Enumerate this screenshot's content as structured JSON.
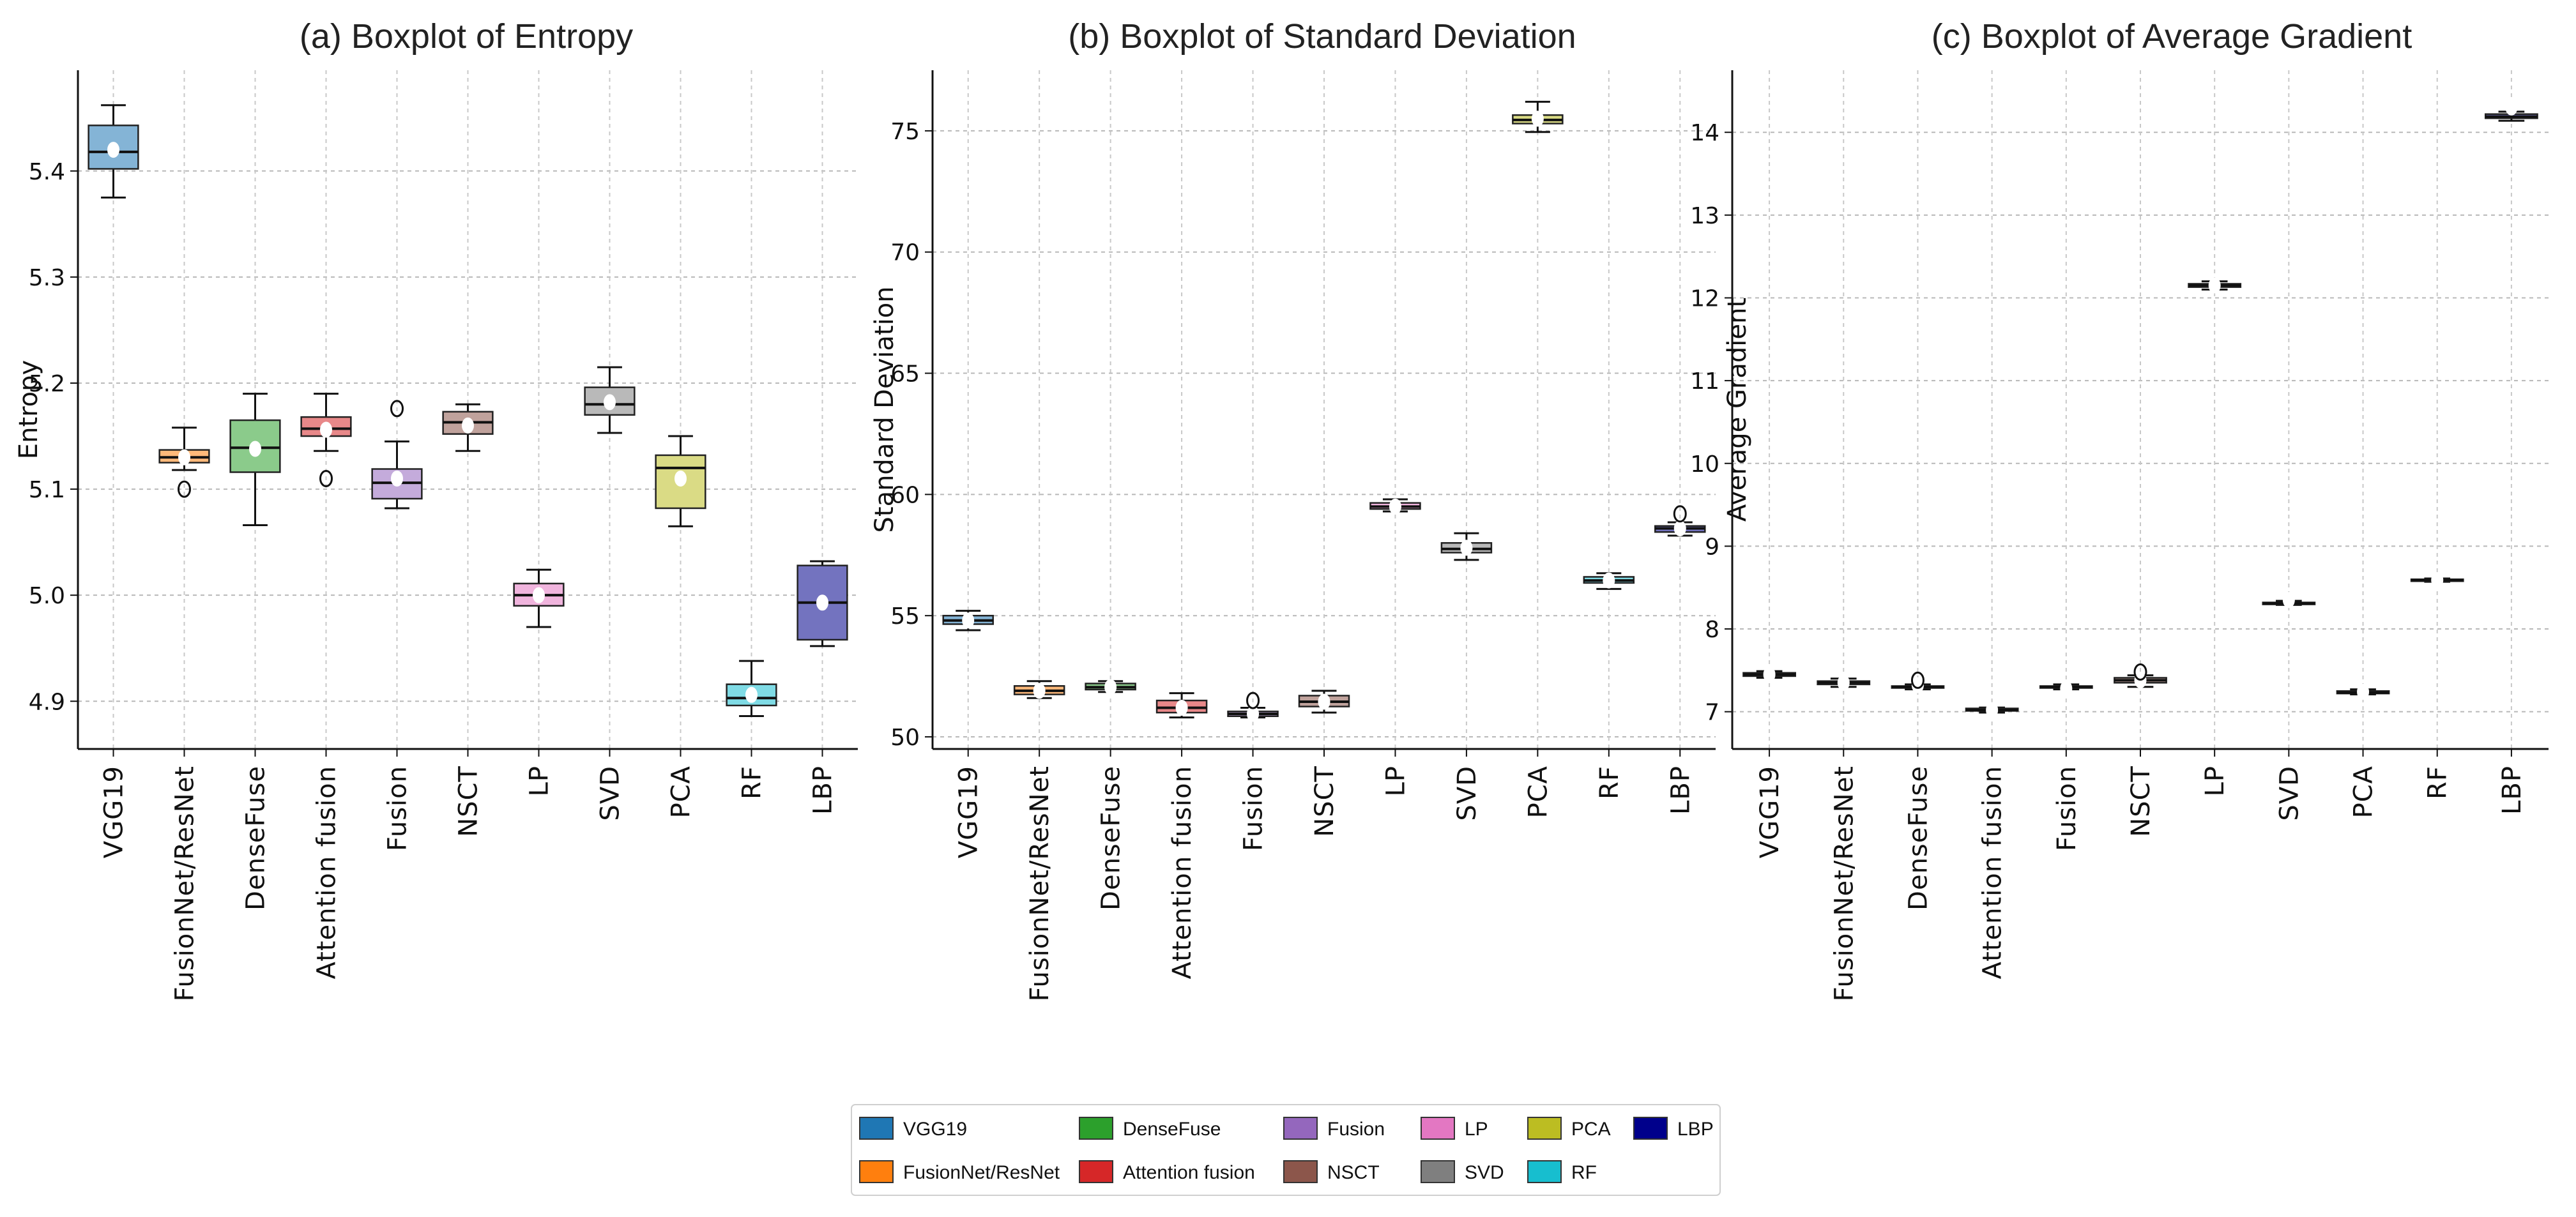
{
  "legend": {
    "items": [
      {
        "label": "VGG19",
        "color": "#1f77b4"
      },
      {
        "label": "FusionNet/ResNet",
        "color": "#ff7f0e"
      },
      {
        "label": "DenseFuse",
        "color": "#2ca02c"
      },
      {
        "label": "Attention fusion",
        "color": "#d62728"
      },
      {
        "label": "Fusion",
        "color": "#9467bd"
      },
      {
        "label": "NSCT",
        "color": "#8c564b"
      },
      {
        "label": "LP",
        "color": "#e377c2"
      },
      {
        "label": "SVD",
        "color": "#7f7f7f"
      },
      {
        "label": "PCA",
        "color": "#bcbd22"
      },
      {
        "label": "RF",
        "color": "#17becf"
      },
      {
        "label": "LBP",
        "color": "#00008b"
      }
    ]
  },
  "chart_data": [
    {
      "type": "boxplot",
      "title": "(a) Boxplot of Entropy",
      "xlabel": "",
      "ylabel": "Entropy",
      "ylim": [
        4.855,
        5.495
      ],
      "yticks": [
        4.9,
        5.0,
        5.1,
        5.2,
        5.3,
        5.4
      ],
      "ytick_labels": [
        "4.9",
        "5.0",
        "5.1",
        "5.2",
        "5.3",
        "5.4"
      ],
      "grid": true,
      "categories": [
        "VGG19",
        "FusionNet/ResNet",
        "DenseFuse",
        "Attention fusion",
        "Fusion",
        "NSCT",
        "LP",
        "SVD",
        "PCA",
        "RF",
        "LBP"
      ],
      "boxes": [
        {
          "whislo": 5.375,
          "q1": 5.402,
          "med": 5.418,
          "q3": 5.443,
          "whishi": 5.462,
          "mean": 5.42,
          "fliers": []
        },
        {
          "whislo": 5.118,
          "q1": 5.125,
          "med": 5.13,
          "q3": 5.137,
          "whishi": 5.158,
          "mean": 5.13,
          "fliers": [
            5.1
          ]
        },
        {
          "whislo": 5.066,
          "q1": 5.116,
          "med": 5.139,
          "q3": 5.165,
          "whishi": 5.19,
          "mean": 5.138,
          "fliers": []
        },
        {
          "whislo": 5.136,
          "q1": 5.15,
          "med": 5.157,
          "q3": 5.168,
          "whishi": 5.19,
          "mean": 5.156,
          "fliers": [
            5.11
          ]
        },
        {
          "whislo": 5.082,
          "q1": 5.091,
          "med": 5.106,
          "q3": 5.119,
          "whishi": 5.145,
          "mean": 5.11,
          "fliers": [
            5.176
          ]
        },
        {
          "whislo": 5.136,
          "q1": 5.152,
          "med": 5.163,
          "q3": 5.173,
          "whishi": 5.18,
          "mean": 5.16,
          "fliers": []
        },
        {
          "whislo": 4.97,
          "q1": 4.99,
          "med": 5.0,
          "q3": 5.011,
          "whishi": 5.024,
          "mean": 5.0,
          "fliers": []
        },
        {
          "whislo": 5.153,
          "q1": 5.17,
          "med": 5.18,
          "q3": 5.196,
          "whishi": 5.215,
          "mean": 5.182,
          "fliers": []
        },
        {
          "whislo": 5.065,
          "q1": 5.082,
          "med": 5.12,
          "q3": 5.132,
          "whishi": 5.15,
          "mean": 5.11,
          "fliers": []
        },
        {
          "whislo": 4.886,
          "q1": 4.896,
          "med": 4.903,
          "q3": 4.916,
          "whishi": 4.938,
          "mean": 4.906,
          "fliers": []
        },
        {
          "whislo": 4.952,
          "q1": 4.958,
          "med": 4.993,
          "q3": 5.028,
          "whishi": 5.032,
          "mean": 4.993,
          "fliers": []
        }
      ]
    },
    {
      "type": "boxplot",
      "title": "(b) Boxplot of Standard Deviation",
      "xlabel": "",
      "ylabel": "Standard Deviation",
      "ylim": [
        49.5,
        77.5
      ],
      "yticks": [
        50,
        55,
        60,
        65,
        70,
        75
      ],
      "ytick_labels": [
        "50",
        "55",
        "60",
        "65",
        "70",
        "75"
      ],
      "grid": true,
      "categories": [
        "VGG19",
        "FusionNet/ResNet",
        "DenseFuse",
        "Attention fusion",
        "Fusion",
        "NSCT",
        "LP",
        "SVD",
        "PCA",
        "RF",
        "LBP"
      ],
      "boxes": [
        {
          "whislo": 54.4,
          "q1": 54.65,
          "med": 54.8,
          "q3": 55.0,
          "whishi": 55.2,
          "mean": 54.8,
          "fliers": []
        },
        {
          "whislo": 51.6,
          "q1": 51.75,
          "med": 51.9,
          "q3": 52.1,
          "whishi": 52.3,
          "mean": 51.9,
          "fliers": []
        },
        {
          "whislo": 51.85,
          "q1": 51.95,
          "med": 52.05,
          "q3": 52.2,
          "whishi": 52.3,
          "mean": 52.05,
          "fliers": []
        },
        {
          "whislo": 50.8,
          "q1": 51.0,
          "med": 51.2,
          "q3": 51.5,
          "whishi": 51.8,
          "mean": 51.2,
          "fliers": []
        },
        {
          "whislo": 50.8,
          "q1": 50.85,
          "med": 50.95,
          "q3": 51.05,
          "whishi": 51.2,
          "mean": 50.95,
          "fliers": [
            51.5
          ]
        },
        {
          "whislo": 51.0,
          "q1": 51.25,
          "med": 51.45,
          "q3": 51.7,
          "whishi": 51.9,
          "mean": 51.45,
          "fliers": []
        },
        {
          "whislo": 59.3,
          "q1": 59.4,
          "med": 59.5,
          "q3": 59.65,
          "whishi": 59.8,
          "mean": 59.5,
          "fliers": []
        },
        {
          "whislo": 57.3,
          "q1": 57.6,
          "med": 57.75,
          "q3": 58.0,
          "whishi": 58.4,
          "mean": 57.8,
          "fliers": []
        },
        {
          "whislo": 74.95,
          "q1": 75.3,
          "med": 75.45,
          "q3": 75.65,
          "whishi": 76.2,
          "mean": 75.5,
          "fliers": []
        },
        {
          "whislo": 56.1,
          "q1": 56.35,
          "med": 56.45,
          "q3": 56.6,
          "whishi": 56.75,
          "mean": 56.45,
          "fliers": []
        },
        {
          "whislo": 58.3,
          "q1": 58.45,
          "med": 58.6,
          "q3": 58.7,
          "whishi": 58.85,
          "mean": 58.6,
          "fliers": [
            59.2
          ]
        }
      ]
    },
    {
      "type": "boxplot",
      "title": "(c) Boxplot of Average Gradient",
      "xlabel": "",
      "ylabel": "Average Gradient",
      "ylim": [
        6.55,
        14.75
      ],
      "yticks": [
        7,
        8,
        9,
        10,
        11,
        12,
        13,
        14
      ],
      "ytick_labels": [
        "7",
        "8",
        "9",
        "10",
        "11",
        "12",
        "13",
        "14"
      ],
      "grid": true,
      "categories": [
        "VGG19",
        "FusionNet/ResNet",
        "DenseFuse",
        "Attention fusion",
        "Fusion",
        "NSCT",
        "LP",
        "SVD",
        "PCA",
        "RF",
        "LBP"
      ],
      "boxes": [
        {
          "whislo": 7.41,
          "q1": 7.43,
          "med": 7.45,
          "q3": 7.47,
          "whishi": 7.49,
          "mean": 7.45,
          "fliers": []
        },
        {
          "whislo": 7.3,
          "q1": 7.33,
          "med": 7.35,
          "q3": 7.37,
          "whishi": 7.4,
          "mean": 7.35,
          "fliers": []
        },
        {
          "whislo": 7.27,
          "q1": 7.29,
          "med": 7.3,
          "q3": 7.31,
          "whishi": 7.33,
          "mean": 7.32,
          "fliers": [
            7.38
          ]
        },
        {
          "whislo": 6.99,
          "q1": 7.01,
          "med": 7.02,
          "q3": 7.04,
          "whishi": 7.05,
          "mean": 7.02,
          "fliers": []
        },
        {
          "whislo": 7.27,
          "q1": 7.29,
          "med": 7.3,
          "q3": 7.31,
          "whishi": 7.33,
          "mean": 7.28,
          "fliers": []
        },
        {
          "whislo": 7.3,
          "q1": 7.35,
          "med": 7.38,
          "q3": 7.41,
          "whishi": 7.44,
          "mean": 7.38,
          "fliers": [
            7.48
          ]
        },
        {
          "whislo": 12.1,
          "q1": 12.13,
          "med": 12.15,
          "q3": 12.17,
          "whishi": 12.2,
          "mean": 12.15,
          "fliers": []
        },
        {
          "whislo": 8.29,
          "q1": 8.3,
          "med": 8.31,
          "q3": 8.32,
          "whishi": 8.34,
          "mean": 8.35,
          "fliers": []
        },
        {
          "whislo": 7.21,
          "q1": 7.22,
          "med": 7.23,
          "q3": 7.25,
          "whishi": 7.27,
          "mean": 7.24,
          "fliers": []
        },
        {
          "whislo": 8.57,
          "q1": 8.58,
          "med": 8.59,
          "q3": 8.6,
          "whishi": 8.61,
          "mean": 8.59,
          "fliers": []
        },
        {
          "whislo": 14.14,
          "q1": 14.17,
          "med": 14.19,
          "q3": 14.22,
          "whishi": 14.25,
          "mean": 14.3,
          "fliers": []
        }
      ]
    }
  ]
}
